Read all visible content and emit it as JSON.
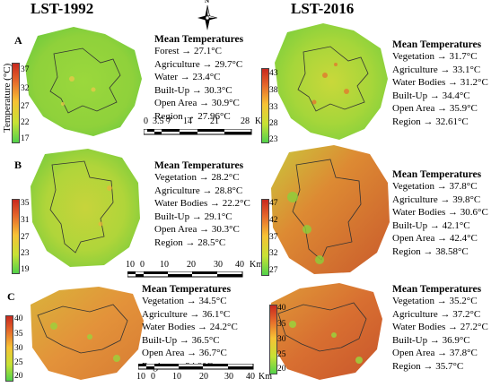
{
  "titles": {
    "left": "LST-1992",
    "right": "LST-2016"
  },
  "compass_label": "N",
  "legend_axis_title": "Temperature (°C)",
  "panels": [
    {
      "label": "A",
      "left_ticks": [
        "37",
        "32",
        "27",
        "22",
        "17"
      ],
      "right_ticks": [
        "43",
        "38",
        "33",
        "28",
        "23"
      ],
      "left_stats": {
        "title": "Mean Temperatures",
        "lines": [
          "Forest → 27.1°C",
          "Agriculture → 29.7°C",
          "Water → 23.4°C",
          "Built-Up → 30.3°C",
          "Open Area → 30.9°C",
          "Region → 27.96°C"
        ]
      },
      "right_stats": {
        "title": "Mean Temperatures",
        "lines": [
          "Vegetation → 31.7°C",
          "Agriculture → 33.1°C",
          "Water Bodies → 31.2°C",
          "Built-Up → 34.4°C",
          "Open Area → 35.9°C",
          "Region → 32.61°C"
        ]
      },
      "scalebar": {
        "labels": [
          "0",
          "3.5",
          "7",
          "14",
          "21",
          "28"
        ],
        "unit": "Km"
      }
    },
    {
      "label": "B",
      "left_ticks": [
        "35",
        "31",
        "27",
        "23",
        "19"
      ],
      "right_ticks": [
        "47",
        "42",
        "37",
        "32",
        "27"
      ],
      "left_stats": {
        "title": "Mean Temperatures",
        "lines": [
          "Vegetation → 28.2°C",
          "Agriculture → 28.8°C",
          "Water Bodies → 22.2°C",
          "Built-Up → 29.1°C",
          "Open Area → 30.3°C",
          "Region → 28.5°C"
        ]
      },
      "right_stats": {
        "title": "Mean Temperatures",
        "lines": [
          "Vegetation → 37.8°C",
          "Agriculture → 39.8°C",
          "Water Bodies → 30.6°C",
          "Built-Up → 42.1°C",
          "Open Area → 42.4°C",
          "Region → 38.58°C"
        ]
      },
      "scalebar": {
        "labels": [
          "10",
          "0",
          "10",
          "20",
          "30",
          "40"
        ],
        "unit": "Km"
      }
    },
    {
      "label": "C",
      "left_ticks": [
        "40",
        "35",
        "30",
        "25",
        "20"
      ],
      "right_ticks": [
        "40",
        "35",
        "30",
        "25",
        "20"
      ],
      "left_stats": {
        "title": "Mean Temperatures",
        "lines": [
          "Vegetation → 34.5°C",
          "Agriculture → 36.1°C",
          "Water Bodies → 24.2°C",
          "Built-Up → 36.5°C",
          "Open Area → 36.7°C",
          "Region → 34.9°C"
        ]
      },
      "right_stats": {
        "title": "Mean Temperatures",
        "lines": [
          "Vegetation → 35.2°C",
          "Agriculture → 37.2°C",
          "Water Bodies → 27.2°C",
          "Built-Up → 36.9°C",
          "Open Area → 37.8°C",
          "Region → 35.7°C"
        ]
      },
      "scalebar": {
        "labels": [
          "10",
          "0",
          "10",
          "20",
          "30",
          "40"
        ],
        "unit": "Km"
      }
    }
  ]
}
